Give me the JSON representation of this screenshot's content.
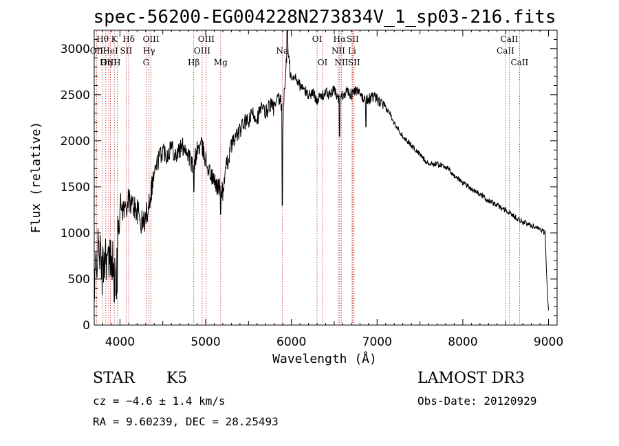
{
  "chart_data": {
    "type": "line",
    "title": "spec-56200-EG004228N273834V_1_sp03-216.fits",
    "xlabel": "Wavelength (Å)",
    "ylabel": "Flux (relative)",
    "xlim": [
      3700,
      9100
    ],
    "ylim": [
      0,
      3200
    ],
    "x_ticks": [
      4000,
      5000,
      6000,
      7000,
      8000,
      9000
    ],
    "y_ticks": [
      0,
      500,
      1000,
      1500,
      2000,
      2500,
      3000
    ],
    "x_tick_labels": [
      "4000",
      "5000",
      "6000",
      "7000",
      "8000",
      "9000"
    ],
    "y_tick_labels": [
      "0",
      "500",
      "1000",
      "1500",
      "2000",
      "2500",
      "3000"
    ],
    "spectrum_anchors": [
      [
        3700,
        200
      ],
      [
        3720,
        700
      ],
      [
        3760,
        850
      ],
      [
        3790,
        550
      ],
      [
        3830,
        800
      ],
      [
        3870,
        650
      ],
      [
        3900,
        780
      ],
      [
        3930,
        600
      ],
      [
        3960,
        500
      ],
      [
        3980,
        1150
      ],
      [
        4000,
        1300
      ],
      [
        4050,
        1250
      ],
      [
        4100,
        1350
      ],
      [
        4150,
        1300
      ],
      [
        4200,
        1250
      ],
      [
        4250,
        1100
      ],
      [
        4300,
        1150
      ],
      [
        4350,
        1400
      ],
      [
        4400,
        1650
      ],
      [
        4450,
        1800
      ],
      [
        4500,
        1900
      ],
      [
        4550,
        1850
      ],
      [
        4600,
        1950
      ],
      [
        4650,
        1850
      ],
      [
        4700,
        1900
      ],
      [
        4750,
        1950
      ],
      [
        4800,
        1850
      ],
      [
        4850,
        1700
      ],
      [
        4900,
        1900
      ],
      [
        4950,
        1950
      ],
      [
        5000,
        1800
      ],
      [
        5050,
        1650
      ],
      [
        5100,
        1550
      ],
      [
        5150,
        1500
      ],
      [
        5200,
        1450
      ],
      [
        5250,
        1750
      ],
      [
        5300,
        1950
      ],
      [
        5350,
        2050
      ],
      [
        5400,
        2100
      ],
      [
        5450,
        2200
      ],
      [
        5500,
        2200
      ],
      [
        5550,
        2300
      ],
      [
        5600,
        2250
      ],
      [
        5650,
        2350
      ],
      [
        5700,
        2300
      ],
      [
        5750,
        2400
      ],
      [
        5800,
        2350
      ],
      [
        5850,
        2450
      ],
      [
        5880,
        2400
      ],
      [
        5900,
        2200
      ],
      [
        5920,
        2550
      ],
      [
        5950,
        3000
      ],
      [
        5980,
        2800
      ],
      [
        6000,
        2650
      ],
      [
        6050,
        2700
      ],
      [
        6100,
        2600
      ],
      [
        6150,
        2550
      ],
      [
        6200,
        2500
      ],
      [
        6250,
        2520
      ],
      [
        6300,
        2450
      ],
      [
        6350,
        2480
      ],
      [
        6400,
        2520
      ],
      [
        6450,
        2500
      ],
      [
        6500,
        2550
      ],
      [
        6550,
        2450
      ],
      [
        6600,
        2500
      ],
      [
        6650,
        2550
      ],
      [
        6700,
        2500
      ],
      [
        6750,
        2550
      ],
      [
        6800,
        2500
      ],
      [
        6850,
        2450
      ],
      [
        6900,
        2450
      ],
      [
        6950,
        2480
      ],
      [
        7000,
        2450
      ],
      [
        7050,
        2400
      ],
      [
        7100,
        2350
      ],
      [
        7150,
        2300
      ],
      [
        7200,
        2200
      ],
      [
        7300,
        2050
      ],
      [
        7400,
        1950
      ],
      [
        7500,
        1850
      ],
      [
        7600,
        1750
      ],
      [
        7700,
        1750
      ],
      [
        7800,
        1720
      ],
      [
        7900,
        1620
      ],
      [
        8000,
        1550
      ],
      [
        8100,
        1480
      ],
      [
        8200,
        1420
      ],
      [
        8300,
        1350
      ],
      [
        8400,
        1300
      ],
      [
        8500,
        1250
      ],
      [
        8600,
        1180
      ],
      [
        8700,
        1120
      ],
      [
        8800,
        1080
      ],
      [
        8900,
        1050
      ],
      [
        8960,
        1000
      ],
      [
        8980,
        500
      ],
      [
        9000,
        150
      ]
    ],
    "spectrum_dips": [
      [
        3935,
        250
      ],
      [
        3968,
        350
      ],
      [
        4861,
        1450
      ],
      [
        5175,
        1200
      ],
      [
        5893,
        1300
      ],
      [
        6563,
        2050
      ],
      [
        6870,
        2150
      ]
    ],
    "lines": [
      {
        "label": "Hθ",
        "w": 3797,
        "row": 1
      },
      {
        "label": "OII",
        "w": 3727,
        "row": 2
      },
      {
        "label": "OIII",
        "w": 3869,
        "row": 3
      },
      {
        "label": "Hη",
        "w": 3835,
        "row": 3
      },
      {
        "label": "HeI",
        "w": 3889,
        "row": 2
      },
      {
        "label": "K",
        "w": 3934,
        "row": 1
      },
      {
        "label": "H",
        "w": 3968,
        "row": 3
      },
      {
        "label": "SII",
        "w": 4072,
        "row": 2
      },
      {
        "label": "Hδ",
        "w": 4102,
        "row": 1
      },
      {
        "label": "G",
        "w": 4305,
        "row": 3
      },
      {
        "label": "Hγ",
        "w": 4340,
        "row": 2
      },
      {
        "label": "OIII",
        "w": 4363,
        "row": 1
      },
      {
        "label": "Hβ",
        "w": 4861,
        "row": 3
      },
      {
        "label": "OIII",
        "w": 4959,
        "row": 2
      },
      {
        "label": "OIII",
        "w": 5007,
        "row": 1
      },
      {
        "label": "Mg",
        "w": 5175,
        "row": 3
      },
      {
        "label": "Na",
        "w": 5893,
        "row": 2
      },
      {
        "label": "OI",
        "w": 6300,
        "row": 1
      },
      {
        "label": "OI",
        "w": 6364,
        "row": 3
      },
      {
        "label": "NII",
        "w": 6548,
        "row": 2
      },
      {
        "label": "Hα",
        "w": 6563,
        "row": 1
      },
      {
        "label": "NII",
        "w": 6583,
        "row": 3
      },
      {
        "label": "Li",
        "w": 6708,
        "row": 2
      },
      {
        "label": "SII",
        "w": 6716,
        "row": 1
      },
      {
        "label": "SII",
        "w": 6731,
        "row": 3
      },
      {
        "label": "CaII",
        "w": 8498,
        "row": 2
      },
      {
        "label": "CaII",
        "w": 8542,
        "row": 1
      },
      {
        "label": "CaII",
        "w": 8662,
        "row": 3
      }
    ]
  },
  "info": {
    "object_class": "STAR",
    "subclass": "K5",
    "survey": "LAMOST DR3",
    "cz": "cz = −4.6 ± 1.4 km/s",
    "obs_date": "Obs-Date: 20120929",
    "coords": "RA =   9.60239, DEC =  28.25493"
  }
}
